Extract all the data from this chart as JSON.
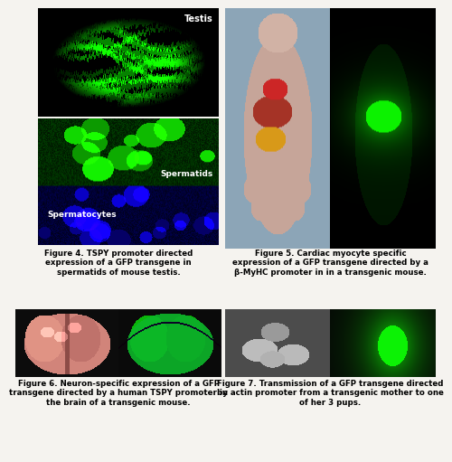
{
  "background_color": "#f5f3ef",
  "fig_width": 4.74,
  "fig_height": 5.01,
  "fig4_caption": "Figure 4. TSPY promoter directed\nexpression of a GFP transgene in\nspermatids of mouse testis.",
  "fig5_caption": "Figure 5. Cardiac myocyte specific\nexpression of a GFP transgene directed by a\nβ-MyHC promoter in in a transgenic mouse.",
  "fig6_caption": "Figure 6. Neuron-specific expression of a GFP\ntransgene directed by a human TSPY promoter in\nthe brain of a transgenic mouse.",
  "fig7_caption": "Figure 7. Transmission of a GFP transgene directed\nby actin promoter from a transgenic mother to one\nof her 3 pups.",
  "caption_fontsize": 6.2,
  "caption_style": "bold"
}
